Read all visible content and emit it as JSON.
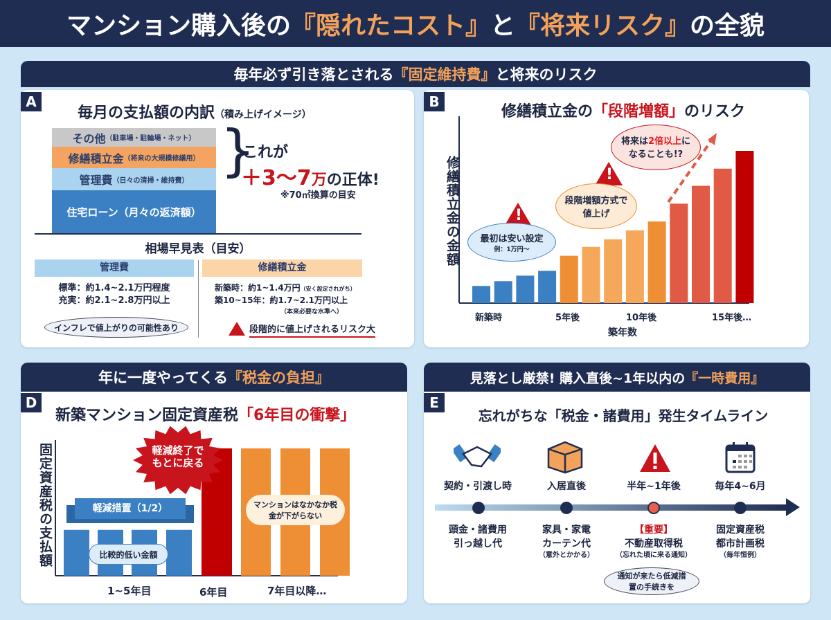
{
  "header": {
    "title_pre": "マンション購入後の",
    "title_hl1": "『隠れたコスト』",
    "title_mid": "と",
    "title_hl2": "『将来リスク』",
    "title_post": "の全貌"
  },
  "section1": {
    "title_pre": "毎年必ず引き落とされる",
    "title_hl": "『固定維持費』",
    "title_post": "と将来のリスク"
  },
  "panelA": {
    "letter": "A",
    "title": "毎月の支払額の内訳",
    "title_sub": "（積み上げイメージ）",
    "stack": [
      {
        "label": "その他",
        "sub": "（駐車場・駐輪場・ネット）",
        "color": "#c8c8c8"
      },
      {
        "label": "修繕積立金",
        "sub": "（将来の大規模修繕用）",
        "color": "#f4a460"
      },
      {
        "label": "管理費",
        "sub": "（日々の清掃・維持費）",
        "color": "#a9d3ef"
      },
      {
        "label": "住宅ローン（月々の返済額）",
        "sub": "",
        "color": "#3b80c3"
      }
    ],
    "callout_1": "これが",
    "callout_amount": "＋3〜7",
    "callout_unit": "万",
    "callout_2": "の正体!",
    "note": "※70㎡換算の目安",
    "table_title": "相場早見表（目安）",
    "left": {
      "header": "管理費",
      "lines": [
        "標準：約1.4~2.1万円程度",
        "充実：約2.1~2.8万円以上"
      ],
      "bubble": "インフレで値上がりの可能性あり"
    },
    "right": {
      "header": "修繕積立金",
      "line1": "新築時：約1~1.4万円",
      "line1_note": "（安く設定されがち）",
      "line2": "築10~15年：約1.7~2.1万円以上",
      "line2_note": "（本来必要な水準へ）",
      "warning": "段階的に値上げされるリスク大"
    }
  },
  "panelB": {
    "letter": "B",
    "title_pre": "修繕積立金の",
    "title_hl": "「段階増額」",
    "title_post": "のリスク",
    "bubble1": "最初は安い設定",
    "bubble1_sub": "例：1万円〜",
    "bubble2": "段階増額方式で値上げ",
    "bubble3_pre": "将来は",
    "bubble3_hl": "2倍以上",
    "bubble3_post": "になることも!?"
  },
  "sectionD": {
    "title_pre": "年に一度やってくる",
    "title_hl": "『税金の負担』"
  },
  "panelD": {
    "letter": "D",
    "title_pre": "新築マンション固定資産税",
    "title_hl": "「6年目の衝撃」",
    "burst": "軽減終了でもとに戻る",
    "ribbon": "軽減措置（1/2）",
    "low_label": "比較的低い金額",
    "high_label": "マンションはなかなか税金が下がらない"
  },
  "sectionE": {
    "title_pre": "見落とし厳禁! 購入直後~1年以内の",
    "title_hl": "『一時費用』"
  },
  "panelE": {
    "letter": "E",
    "title": "忘れがちな「税金・諸費用」発生タイムライン",
    "events": [
      {
        "icon": "handshake-icon",
        "when": "契約・引渡し時",
        "what": [
          "頭金・諸費用",
          "引っ越し代"
        ],
        "note": ""
      },
      {
        "icon": "box-icon",
        "when": "入居直後",
        "what": [
          "家具・家電",
          "カーテン代"
        ],
        "note": "（意外とかかる）"
      },
      {
        "icon": "warning-icon",
        "when": "半年~1年後",
        "tag": "【重要】",
        "what": [
          "不動産取得税"
        ],
        "note": "（忘れた頃に来る通知）"
      },
      {
        "icon": "calendar-icon",
        "when": "毎年4~6月",
        "what": [
          "固定資産税",
          "都市計画税"
        ],
        "note": "（毎年恒例）"
      }
    ],
    "bubble": "通知が来たら低減措置の手続きを"
  },
  "chart_data": [
    {
      "type": "bar",
      "title": "修繕積立金の「段階増額」のリスク",
      "xlabel": "築年数",
      "ylabel": "修繕積立金の金額",
      "x_tick_labels": [
        "新築時",
        "5年後",
        "10年後",
        "15年後…"
      ],
      "values": [
        25,
        32,
        40,
        47,
        69,
        82,
        93,
        106,
        119,
        145,
        171,
        196,
        222
      ],
      "colors": [
        "#3b80c3",
        "#3b80c3",
        "#3b80c3",
        "#3b80c3",
        "#ef8f35",
        "#f5a85a",
        "#f5a85a",
        "#f5a85a",
        "#ef8f35",
        "#e05a45",
        "#e05a45",
        "#e05a45",
        "#c00000"
      ],
      "grid": false
    },
    {
      "type": "bar",
      "title": "新築マンション固定資産税「6年目の衝撃」",
      "ylabel": "固定資産税の支払額",
      "x_tick_labels": [
        "1~5年目",
        "6年目",
        "7年目以降…"
      ],
      "values": [
        0.36,
        0.36,
        0.36,
        0.36,
        1,
        1,
        1,
        1
      ],
      "colors": [
        "#3b80c3",
        "#3b80c3",
        "#3b80c3",
        "#3b80c3",
        "#c00000",
        "#ef8f35",
        "#ef8f35",
        "#ef8f35"
      ],
      "grid": false
    }
  ]
}
